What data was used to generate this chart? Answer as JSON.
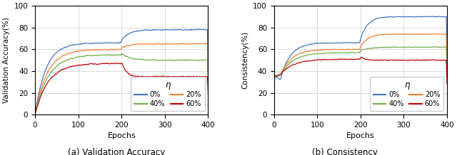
{
  "fig_width": 6.4,
  "fig_height": 2.18,
  "dpi": 100,
  "xlabel": "Epochs",
  "x_max": 400,
  "x_ticks": [
    0,
    100,
    200,
    300,
    400
  ],
  "left_ylabel": "Validation Accuracy(%)",
  "right_ylabel": "Consistency(%)",
  "yticks": [
    0,
    20,
    40,
    60,
    80,
    100
  ],
  "ylim": [
    0,
    100
  ],
  "caption_left": "(a) Validation Accuracy",
  "caption_right": "(b) Consistency",
  "colors": {
    "0%": "#4472C4",
    "20%": "#ED7D31",
    "40%": "#70AD47",
    "60%": "#C00000"
  },
  "legend_title": "η",
  "noise_levels": [
    "0%",
    "20%",
    "40%",
    "60%"
  ],
  "left_curves": {
    "0%": {
      "start": 0,
      "plateau1": 66,
      "plateau2": 78,
      "bump_height": 3,
      "tau1": 25,
      "tau2": 15
    },
    "20%": {
      "start": 0,
      "plateau1": 60,
      "plateau2": 65,
      "bump_height": 2,
      "tau1": 28,
      "tau2": 15
    },
    "40%": {
      "start": 0,
      "plateau1": 55,
      "plateau2": 50,
      "bump_height": 2,
      "tau1": 30,
      "tau2": 20
    },
    "60%": {
      "start": 0,
      "plateau1": 47,
      "plateau2": 35,
      "bump_height": 2,
      "tau1": 30,
      "tau2": 10
    }
  },
  "right_curves": {
    "0%": {
      "start": 32,
      "dip": 35,
      "plateau1": 66,
      "plateau2": 90,
      "bump_height": 4,
      "tau1": 22,
      "tau2": 15
    },
    "20%": {
      "start": 36,
      "dip": 35,
      "plateau1": 60,
      "plateau2": 74,
      "bump_height": 3,
      "tau1": 25,
      "tau2": 15
    },
    "40%": {
      "start": 36,
      "dip": 35,
      "plateau1": 57,
      "plateau2": 62,
      "bump_height": 3,
      "tau1": 28,
      "tau2": 18
    },
    "60%": {
      "start": 37,
      "dip": 35,
      "plateau1": 51,
      "plateau2": 50,
      "bump_height": 2,
      "tau1": 30,
      "tau2": 12
    }
  },
  "transition_epoch": 200
}
